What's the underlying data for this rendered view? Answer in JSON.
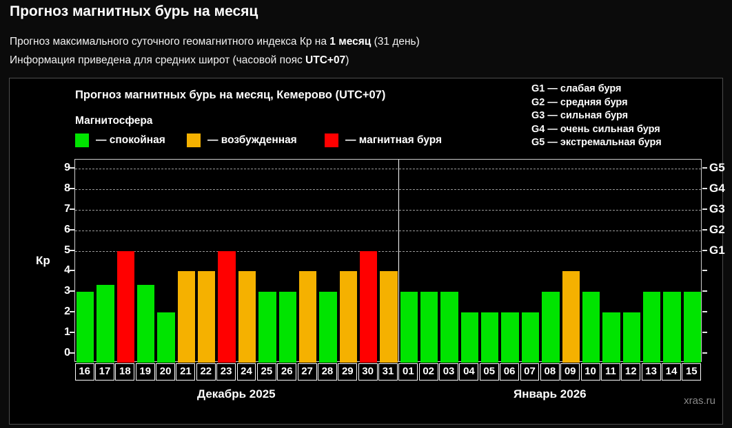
{
  "page": {
    "title": "Прогноз магнитных бурь на месяц",
    "subtitle1_prefix": "Прогноз максимального суточного геомагнитного индекса Кр на ",
    "subtitle1_bold": "1 месяц",
    "subtitle1_suffix": " (31 день)",
    "subtitle2_prefix": "Информация приведена для средних широт (часовой пояс ",
    "subtitle2_bold": "UTC+07",
    "subtitle2_suffix": ")"
  },
  "chart": {
    "title": "Прогноз магнитных бурь на месяц, Кемерово (UTC+07)",
    "legend_title": "Магнитосфера",
    "legend": [
      {
        "state": "quiet",
        "label": "— спокойная"
      },
      {
        "state": "excited",
        "label": "— возбужденная"
      },
      {
        "state": "storm",
        "label": "— магнитная буря"
      }
    ],
    "g_legend": [
      "G1 — слабая буря",
      "G2 — средняя буря",
      "G3 — сильная буря",
      "G4 — очень сильная буря",
      "G5 — экстремальная буря"
    ],
    "ylabel": "Кр",
    "watermark": "xras.ru"
  },
  "chart_data": {
    "type": "bar",
    "title": "Прогноз магнитных бурь на месяц, Кемерово (UTC+07)",
    "ylabel": "Кр",
    "ylim": [
      0,
      9
    ],
    "yticks": [
      0,
      1,
      2,
      3,
      4,
      5,
      6,
      7,
      8,
      9
    ],
    "grid_values": [
      5,
      6,
      7,
      8,
      9
    ],
    "grid_style": "dashed",
    "legend_position": "top-left",
    "right_axis": [
      {
        "value": 5,
        "label": "G1"
      },
      {
        "value": 6,
        "label": "G2"
      },
      {
        "value": 7,
        "label": "G3"
      },
      {
        "value": 8,
        "label": "G4"
      },
      {
        "value": 9,
        "label": "G5"
      }
    ],
    "categories": [
      "16",
      "17",
      "18",
      "19",
      "20",
      "21",
      "22",
      "23",
      "24",
      "25",
      "26",
      "27",
      "28",
      "29",
      "30",
      "31",
      "01",
      "02",
      "03",
      "04",
      "05",
      "06",
      "07",
      "08",
      "09",
      "10",
      "11",
      "12",
      "13",
      "14",
      "15"
    ],
    "values": [
      3,
      3.33,
      5,
      3.33,
      2,
      4,
      4,
      5,
      4,
      3,
      3,
      4,
      3,
      4,
      5,
      4,
      3,
      3,
      3,
      2,
      2,
      2,
      2,
      3,
      4,
      3,
      2,
      2,
      3,
      3,
      3
    ],
    "states": [
      "quiet",
      "quiet",
      "storm",
      "quiet",
      "quiet",
      "excited",
      "excited",
      "storm",
      "excited",
      "quiet",
      "quiet",
      "excited",
      "quiet",
      "excited",
      "storm",
      "excited",
      "quiet",
      "quiet",
      "quiet",
      "quiet",
      "quiet",
      "quiet",
      "quiet",
      "quiet",
      "excited",
      "quiet",
      "quiet",
      "quiet",
      "quiet",
      "quiet",
      "quiet"
    ],
    "state_colors": {
      "quiet": "#00e400",
      "excited": "#f5b100",
      "storm": "#ff0000"
    },
    "month_split_index": 16,
    "months": [
      {
        "label": "Декабрь 2025"
      },
      {
        "label": "Январь 2026"
      }
    ]
  }
}
